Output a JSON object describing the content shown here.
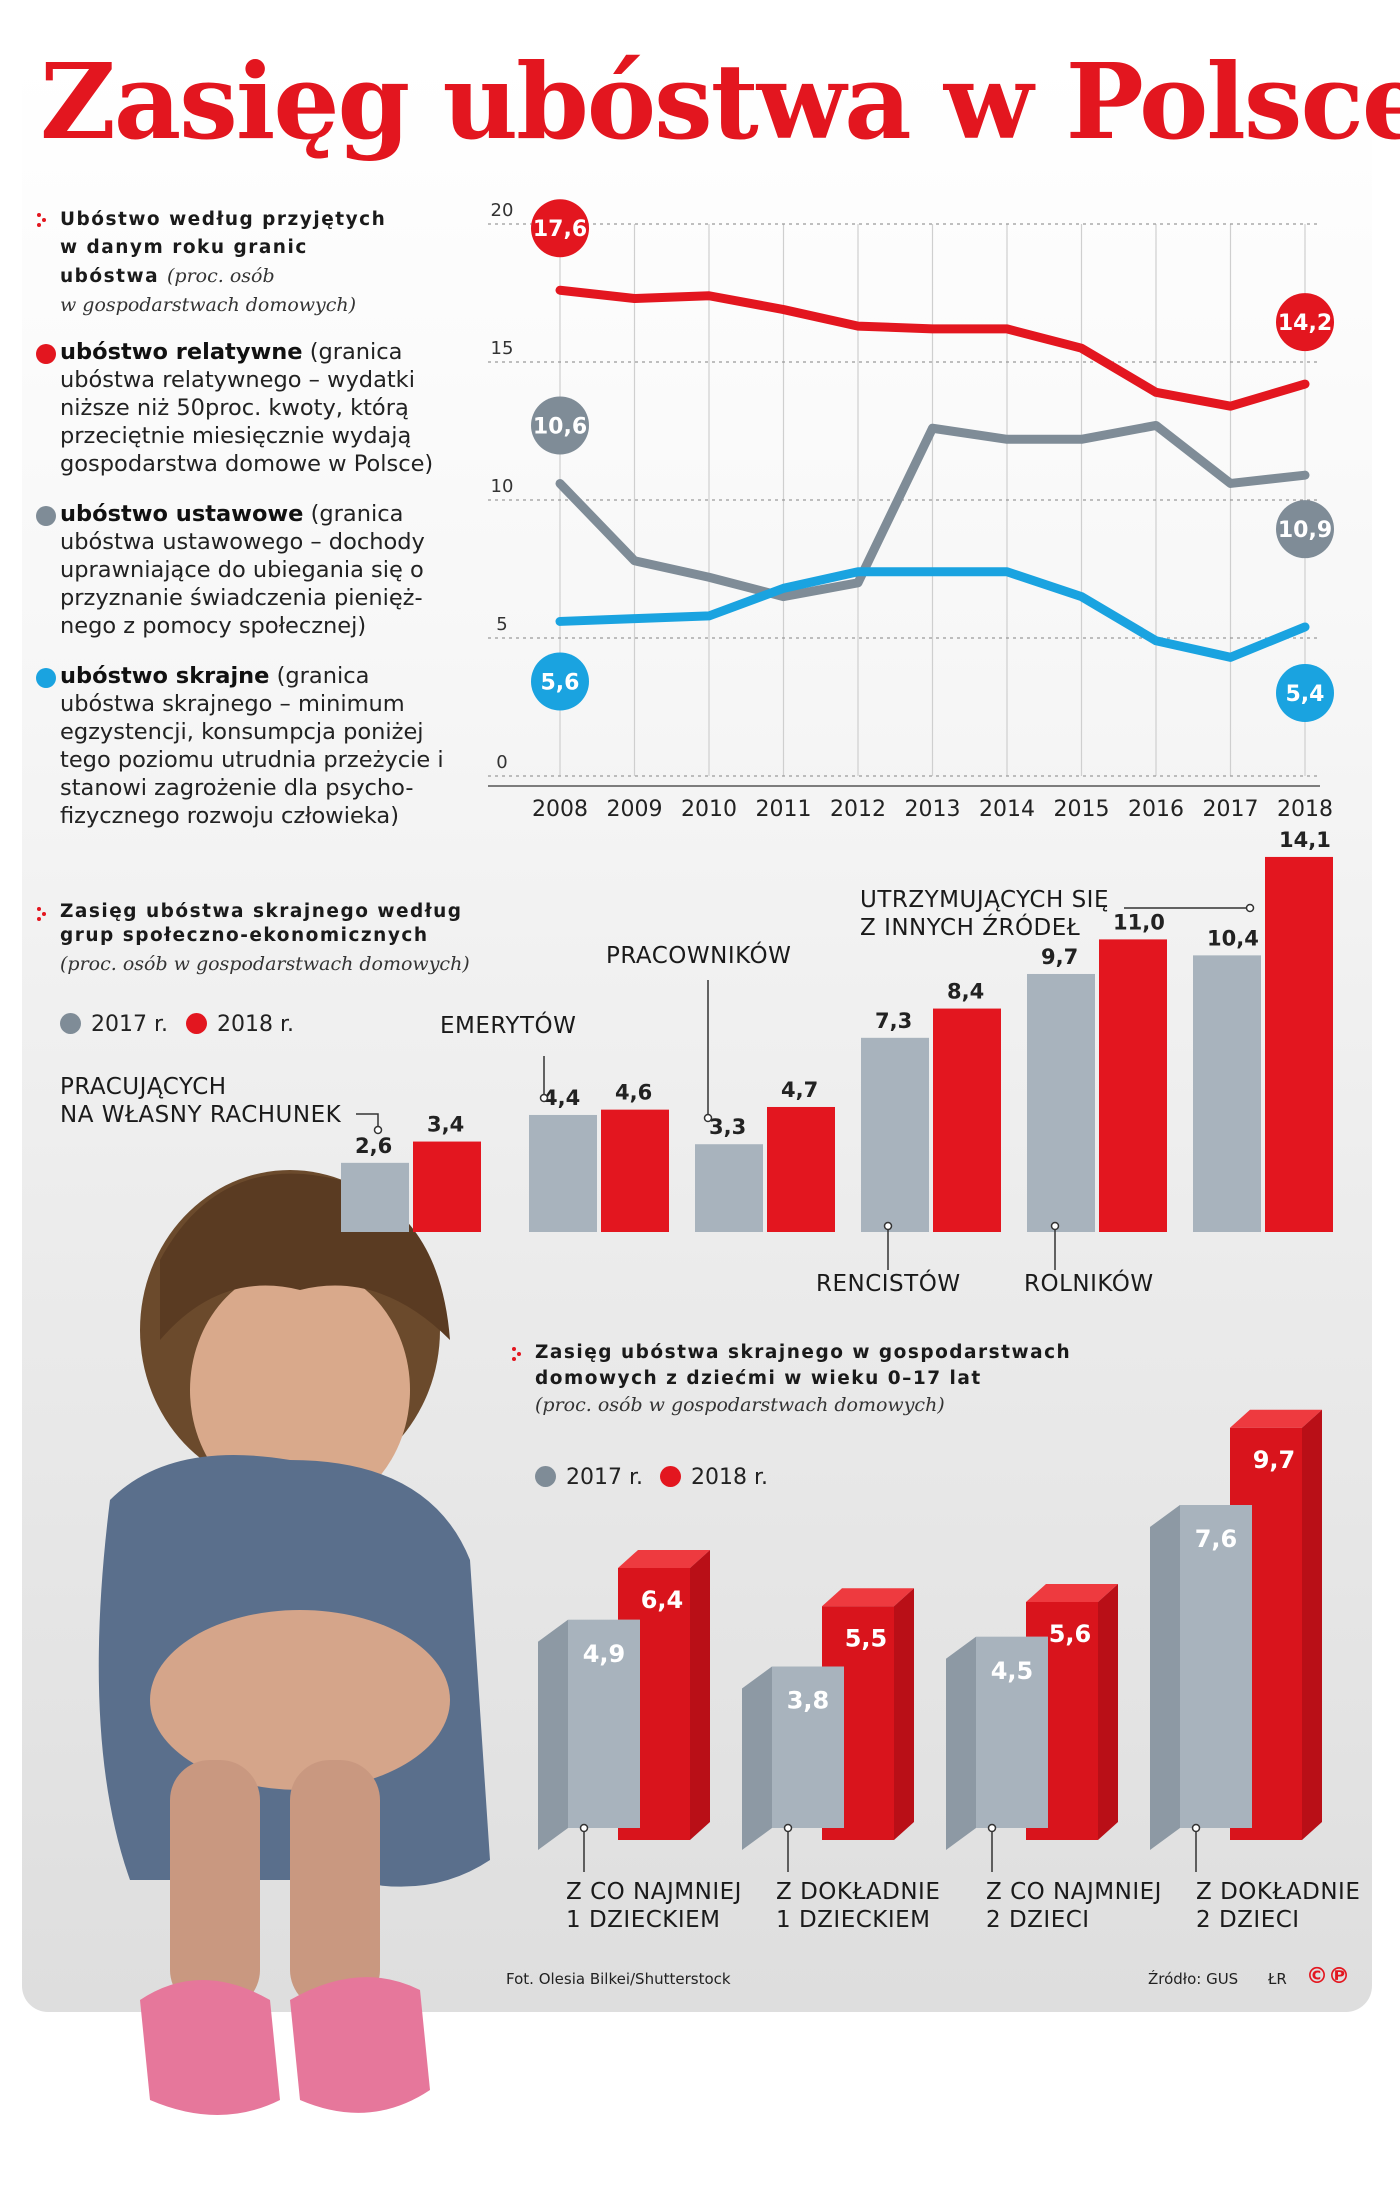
{
  "title": "Zasięg ubóstwa w Polsce",
  "section1": {
    "heading_line1": "Ubóstwo według przyjętych",
    "heading_line2": "w danym roku granic",
    "heading_line3": "ubóstwa",
    "subtitle_inline": "(proc. osób",
    "subtitle_line2": "w gospodarstwach domowych)",
    "legend": [
      {
        "bold": "ubóstwo relatywne",
        "text": " (granica ubóstwa relatywnego – wydatki niższe niż 50proc. kwoty, którą przeciętnie miesięcznie wydają gospodarstwa domowe w Polsce)",
        "color": "#e3161f"
      },
      {
        "bold": "ubóstwo ustawowe",
        "text": " (granica ubóstwa ustawowego – dochody uprawniające do ubiegania się o przyznanie świadczenia pienięż-nego z pomocy społecznej)",
        "color": "#7f8c97"
      },
      {
        "bold": "ubóstwo skrajne",
        "text": " (granica ubóstwa skrajnego – minimum egzystencji, konsumpcja poniżej tego poziomu utrudnia przeżycie i stanowi zagrożenie dla psycho-fizycznego rozwoju człowieka)",
        "color": "#1aa3e0"
      }
    ]
  },
  "section2": {
    "heading_line1": "Zasięg ubóstwa skrajnego według",
    "heading_line2": "grup społeczno-ekonomicznych",
    "subtitle": "(proc. osób w gospodarstwach domowych)",
    "legend_2017": "2017 r.",
    "legend_2018": "2018 r.",
    "labels": [
      "PRACUJĄCYCH",
      "NA WŁASNY RACHUNEK",
      "EMERYTÓW",
      "PRACOWNIKÓW",
      "RENCISTÓW",
      "ROLNIKÓW",
      "UTRZYMUJĄCYCH SIĘ",
      "Z INNYCH ŹRÓDEŁ"
    ]
  },
  "section3": {
    "heading_line1": "Zasięg ubóstwa skrajnego w gospodarstwach",
    "heading_line2": "domowych z dziećmi w wieku 0–17 lat",
    "subtitle": "(proc. osób w gospodarstwach domowych)",
    "legend_2017": "2017 r.",
    "legend_2018": "2018 r.",
    "labels": [
      "Z CO NAJMNIEJ",
      "1 DZIECKIEM",
      "Z DOKŁADNIE",
      "1 DZIECKIEM",
      "Z CO NAJMNIEJ",
      "2 DZIECI",
      "Z DOKŁADNIE",
      "2 DZIECI"
    ]
  },
  "footer": {
    "photo": "Fot. Olesia Bilkei/Shutterstock",
    "source": "Źródło: GUS",
    "initials": "ŁR",
    "logo": "©℗"
  },
  "colors": {
    "red": "#e3161f",
    "gray": "#7f8c97",
    "blue": "#1aa3e0",
    "bar_gray": "#a8b3bd"
  },
  "chart_data": [
    {
      "type": "line",
      "title": "Ubóstwo według przyjętych w danym roku granic ubóstwa",
      "ylabel": "proc. osób w gospodarstwach domowych",
      "ylim": [
        0,
        20
      ],
      "yticks": [
        "0",
        "5",
        "10",
        "15",
        "20"
      ],
      "x": [
        "2008",
        "2009",
        "2010",
        "2011",
        "2012",
        "2013",
        "2014",
        "2015",
        "2016",
        "2017",
        "2018"
      ],
      "series": [
        {
          "name": "ubóstwo relatywne",
          "values": [
            17.6,
            17.3,
            17.4,
            16.9,
            16.3,
            16.2,
            16.2,
            15.5,
            13.9,
            13.4,
            14.2
          ],
          "start_label": "17,6",
          "end_label": "14,2"
        },
        {
          "name": "ubóstwo ustawowe",
          "values": [
            10.6,
            7.8,
            7.2,
            6.5,
            7.0,
            12.6,
            12.2,
            12.2,
            12.7,
            10.6,
            10.9
          ],
          "start_label": "10,6",
          "end_label": "10,9"
        },
        {
          "name": "ubóstwo skrajne",
          "values": [
            5.6,
            5.7,
            5.8,
            6.8,
            7.4,
            7.4,
            7.4,
            6.5,
            4.9,
            4.3,
            5.4
          ],
          "start_label": "5,6",
          "end_label": "5,4"
        }
      ]
    },
    {
      "type": "bar",
      "title": "Zasięg ubóstwa skrajnego według grup społeczno-ekonomicznych",
      "categories": [
        "pracujących na własny rachunek",
        "emerytów",
        "pracowników",
        "rencistów",
        "rolników",
        "utrzymujących się z innych źródeł"
      ],
      "series": [
        {
          "name": "2017 r.",
          "values": [
            2.6,
            4.4,
            3.3,
            7.3,
            9.7,
            10.4
          ],
          "labels": [
            "2,6",
            "4,4",
            "3,3",
            "7,3",
            "9,7",
            "10,4"
          ]
        },
        {
          "name": "2018 r.",
          "values": [
            3.4,
            4.6,
            4.7,
            8.4,
            11.0,
            14.1
          ],
          "labels": [
            "3,4",
            "4,6",
            "4,7",
            "8,4",
            "11,0",
            "14,1"
          ]
        }
      ]
    },
    {
      "type": "bar",
      "title": "Zasięg ubóstwa skrajnego w gospodarstwach domowych z dziećmi w wieku 0–17 lat",
      "categories": [
        "z co najmniej 1 dzieckiem",
        "z dokładnie 1 dzieckiem",
        "z co najmniej 2 dzieci",
        "z dokładnie 2 dzieci"
      ],
      "series": [
        {
          "name": "2017 r.",
          "values": [
            4.9,
            3.8,
            4.5,
            7.6
          ],
          "labels": [
            "4,9",
            "3,8",
            "4,5",
            "7,6"
          ]
        },
        {
          "name": "2018 r.",
          "values": [
            6.4,
            5.5,
            5.6,
            9.7
          ],
          "labels": [
            "6,4",
            "5,5",
            "5,6",
            "9,7"
          ]
        }
      ]
    }
  ]
}
